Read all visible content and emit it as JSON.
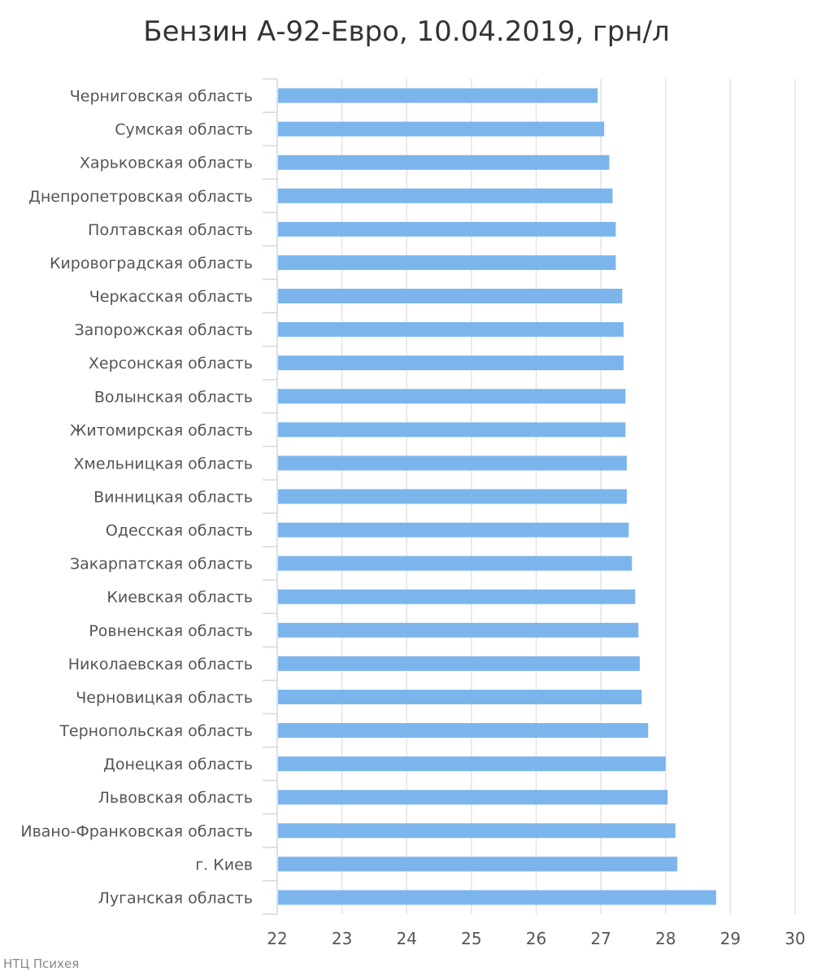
{
  "credit": "НТЦ Психея",
  "chart_data": {
    "type": "bar",
    "orientation": "horizontal",
    "title": "Бензин А-92-Евро, 10.04.2019, грн/л",
    "xlabel": "",
    "ylabel": "",
    "xlim": [
      22,
      30
    ],
    "x_ticks": [
      "22",
      "23",
      "24",
      "25",
      "26",
      "27",
      "28",
      "29",
      "30"
    ],
    "grid": true,
    "legend": "none",
    "bar_color": "#7cb5ec",
    "categories": [
      "Черниговская область",
      "Сумская область",
      "Харьковская область",
      "Днепропетровская область",
      "Полтавская область",
      "Кировоградская область",
      "Черкасская область",
      "Запорожская область",
      "Херсонская область",
      "Волынская область",
      "Житомирская область",
      "Хмельницкая область",
      "Винницкая область",
      "Одесская область",
      "Закарпатская область",
      "Киевская область",
      "Ровненская область",
      "Николаевская область",
      "Черновицкая область",
      "Тернопольская область",
      "Донецкая область",
      "Львовская область",
      "Ивано-Франковская область",
      "г. Киев",
      "Луганская область"
    ],
    "values": [
      26.95,
      27.05,
      27.13,
      27.18,
      27.23,
      27.23,
      27.33,
      27.35,
      27.35,
      27.38,
      27.38,
      27.4,
      27.4,
      27.43,
      27.48,
      27.53,
      27.58,
      27.6,
      27.63,
      27.73,
      28.0,
      28.03,
      28.15,
      28.18,
      28.78
    ]
  }
}
